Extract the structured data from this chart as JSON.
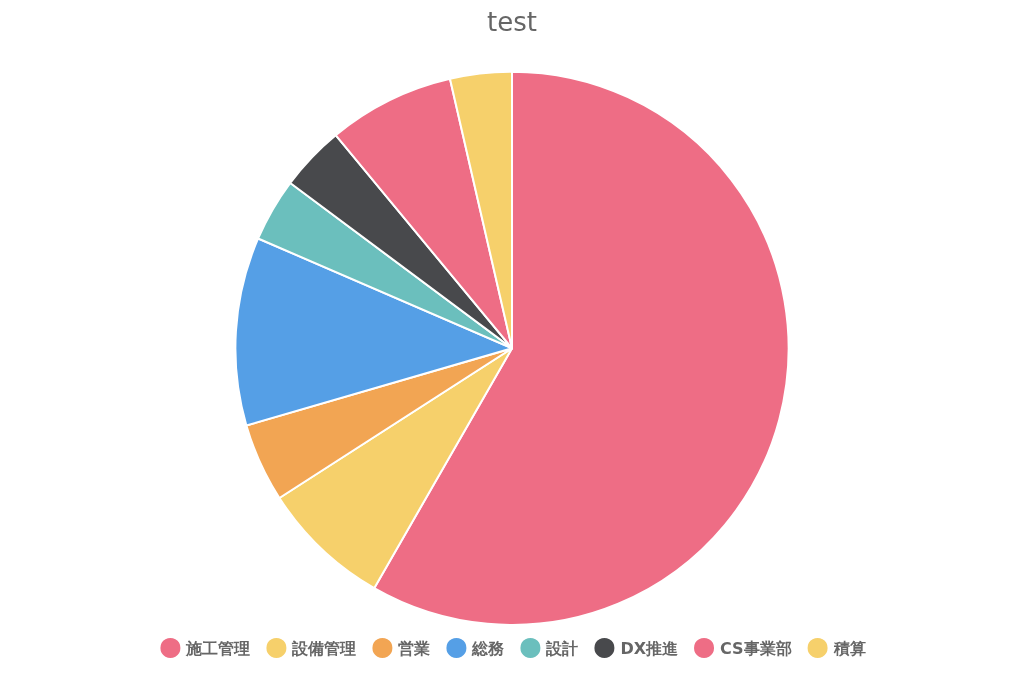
{
  "chart_data": {
    "type": "pie",
    "title": "test",
    "categories": [
      "施工管理",
      "設備管理",
      "営業",
      "総務",
      "設計",
      "DX推進",
      "CS事業部",
      "積算"
    ],
    "values": [
      58.3,
      7.6,
      4.6,
      11.0,
      3.7,
      3.8,
      7.4,
      3.6
    ],
    "colors": [
      "#ee6d85",
      "#f6d06b",
      "#f2a553",
      "#559fe6",
      "#6bbfbd",
      "#48494c",
      "#ee6d85",
      "#f6d06b"
    ],
    "legend": "bottom"
  }
}
